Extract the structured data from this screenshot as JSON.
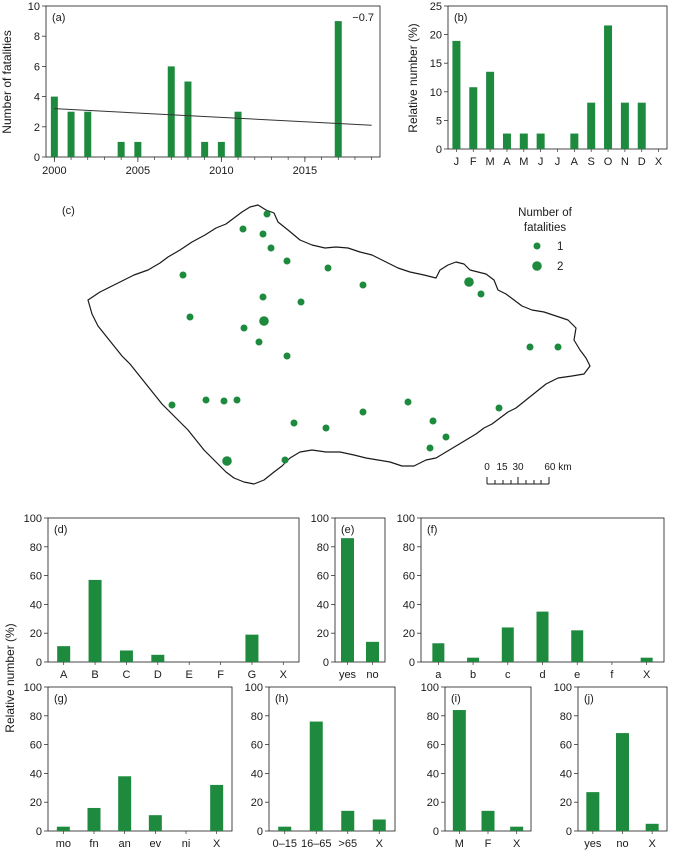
{
  "colors": {
    "bar": "#1e8a3e",
    "dot": "#1e8a3e",
    "axis": "#333333",
    "border": "#1a1a1a"
  },
  "chart_data": [
    {
      "id": "a",
      "type": "bar",
      "panel_label": "(a)",
      "annotation": "−0.7",
      "ylabel": "Number of fatalities",
      "x": [
        2000,
        2001,
        2002,
        2004,
        2005,
        2007,
        2008,
        2009,
        2010,
        2011,
        2017
      ],
      "values": [
        4,
        3,
        3,
        1,
        1,
        6,
        5,
        1,
        1,
        3,
        9
      ],
      "xlim": [
        1999.5,
        2019.5
      ],
      "ylim": [
        0,
        10
      ],
      "xticks": [
        2000,
        2005,
        2010,
        2015
      ],
      "yticks": [
        0,
        2,
        4,
        6,
        8,
        10
      ],
      "trend": {
        "x": [
          2000,
          2019
        ],
        "y": [
          3.2,
          2.1
        ]
      }
    },
    {
      "id": "b",
      "type": "bar",
      "panel_label": "(b)",
      "ylabel": "Relative number (%)",
      "categories": [
        "J",
        "F",
        "M",
        "A",
        "M",
        "J",
        "J",
        "A",
        "S",
        "O",
        "N",
        "D",
        "X"
      ],
      "values": [
        18.9,
        10.8,
        13.5,
        2.7,
        2.7,
        2.7,
        0,
        2.7,
        8.1,
        21.6,
        8.1,
        8.1,
        0
      ],
      "ylim": [
        0,
        25
      ],
      "yticks": [
        0,
        5,
        10,
        15,
        20,
        25
      ]
    },
    {
      "id": "d",
      "type": "bar",
      "panel_label": "(d)",
      "ylabel": "Relative number (%)",
      "categories": [
        "A",
        "B",
        "C",
        "D",
        "E",
        "F",
        "G",
        "X"
      ],
      "values": [
        11,
        57,
        8,
        5,
        0,
        0,
        19,
        0
      ],
      "ylim": [
        0,
        100
      ],
      "yticks": [
        0,
        20,
        40,
        60,
        80,
        100
      ]
    },
    {
      "id": "e",
      "type": "bar",
      "panel_label": "(e)",
      "categories": [
        "yes",
        "no"
      ],
      "values": [
        86,
        14
      ],
      "ylim": [
        0,
        100
      ],
      "yticks": [
        0,
        20,
        40,
        60,
        80,
        100
      ]
    },
    {
      "id": "f",
      "type": "bar",
      "panel_label": "(f)",
      "categories": [
        "a",
        "b",
        "c",
        "d",
        "e",
        "f",
        "X"
      ],
      "values": [
        13,
        3,
        24,
        35,
        22,
        0,
        3
      ],
      "ylim": [
        0,
        100
      ],
      "yticks": [
        0,
        20,
        40,
        60,
        80,
        100
      ]
    },
    {
      "id": "g",
      "type": "bar",
      "panel_label": "(g)",
      "categories": [
        "mo",
        "fn",
        "an",
        "ev",
        "ni",
        "X"
      ],
      "values": [
        3,
        16,
        38,
        11,
        0,
        32
      ],
      "ylim": [
        0,
        100
      ],
      "yticks": [
        0,
        20,
        40,
        60,
        80,
        100
      ]
    },
    {
      "id": "h",
      "type": "bar",
      "panel_label": "(h)",
      "categories": [
        "0–15",
        "16–65",
        ">65",
        "X"
      ],
      "values": [
        3,
        76,
        14,
        8
      ],
      "ylim": [
        0,
        100
      ],
      "yticks": [
        0,
        20,
        40,
        60,
        80,
        100
      ]
    },
    {
      "id": "i",
      "type": "bar",
      "panel_label": "(i)",
      "categories": [
        "M",
        "F",
        "X"
      ],
      "values": [
        84,
        14,
        3
      ],
      "ylim": [
        0,
        100
      ],
      "yticks": [
        0,
        20,
        40,
        60,
        80,
        100
      ]
    },
    {
      "id": "j",
      "type": "bar",
      "panel_label": "(j)",
      "categories": [
        "yes",
        "no",
        "X"
      ],
      "values": [
        27,
        68,
        5
      ],
      "ylim": [
        0,
        100
      ],
      "yticks": [
        0,
        20,
        40,
        60,
        80,
        100
      ]
    }
  ],
  "map": {
    "panel_label": "(c)",
    "legend_title_line1": "Number of",
    "legend_title_line2": "fatalities",
    "legend_entries": [
      "1",
      "2"
    ],
    "scale_labels": [
      "0",
      "15",
      "30",
      "60 km"
    ],
    "scale_values_km": [
      0,
      15,
      30,
      60
    ]
  },
  "shared_ylabel": "Relative number (%)"
}
